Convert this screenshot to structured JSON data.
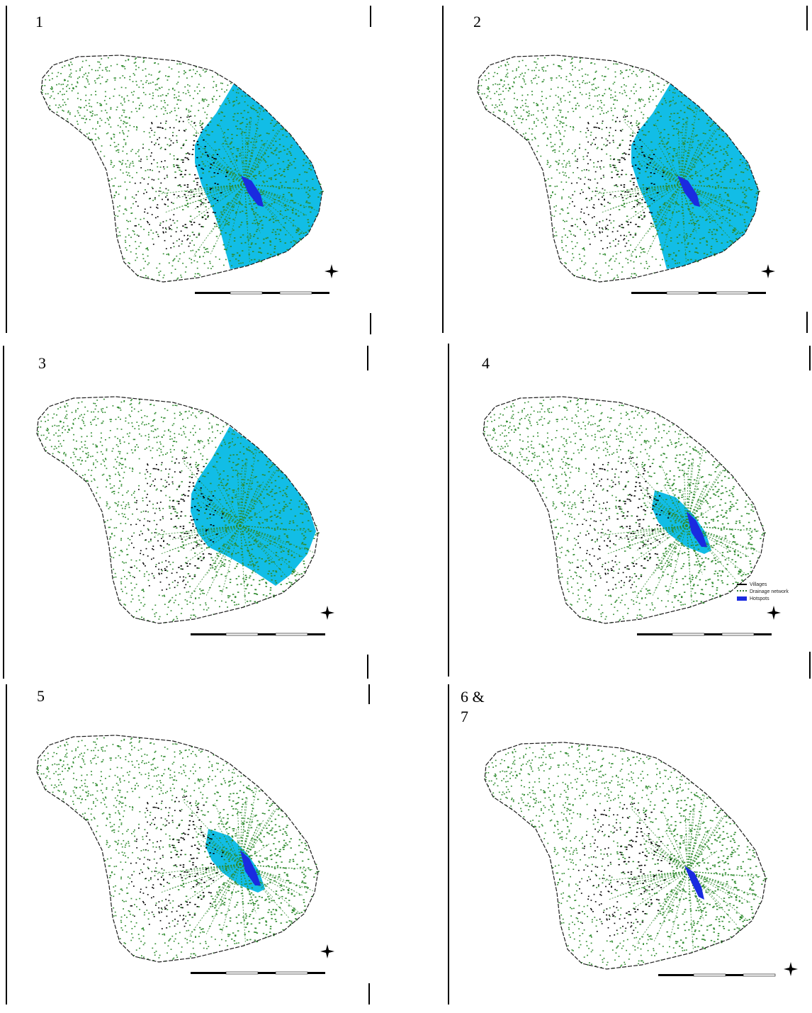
{
  "panels": [
    {
      "label": "1",
      "highlight": "large"
    },
    {
      "label": "2",
      "highlight": "large"
    },
    {
      "label": "3",
      "highlight": "medium"
    },
    {
      "label": "4",
      "highlight": "small"
    },
    {
      "label": "5",
      "highlight": "small"
    },
    {
      "label": "6 &\n7",
      "highlight": "tiny"
    }
  ],
  "legend": {
    "items": [
      {
        "label": "Villages",
        "color": "#000000"
      },
      {
        "label": "Drainage network",
        "color": "#2e7d32"
      },
      {
        "label": "Hotspots",
        "color": "#1a2be0"
      }
    ]
  },
  "colors": {
    "island_fill": "#ffffff",
    "island_outline": "#1b1b1b",
    "drainage_green": "#2e8b2e",
    "catchment_cyan": "#12bde6",
    "core_blue": "#1a2be0",
    "villages": "#000000"
  }
}
